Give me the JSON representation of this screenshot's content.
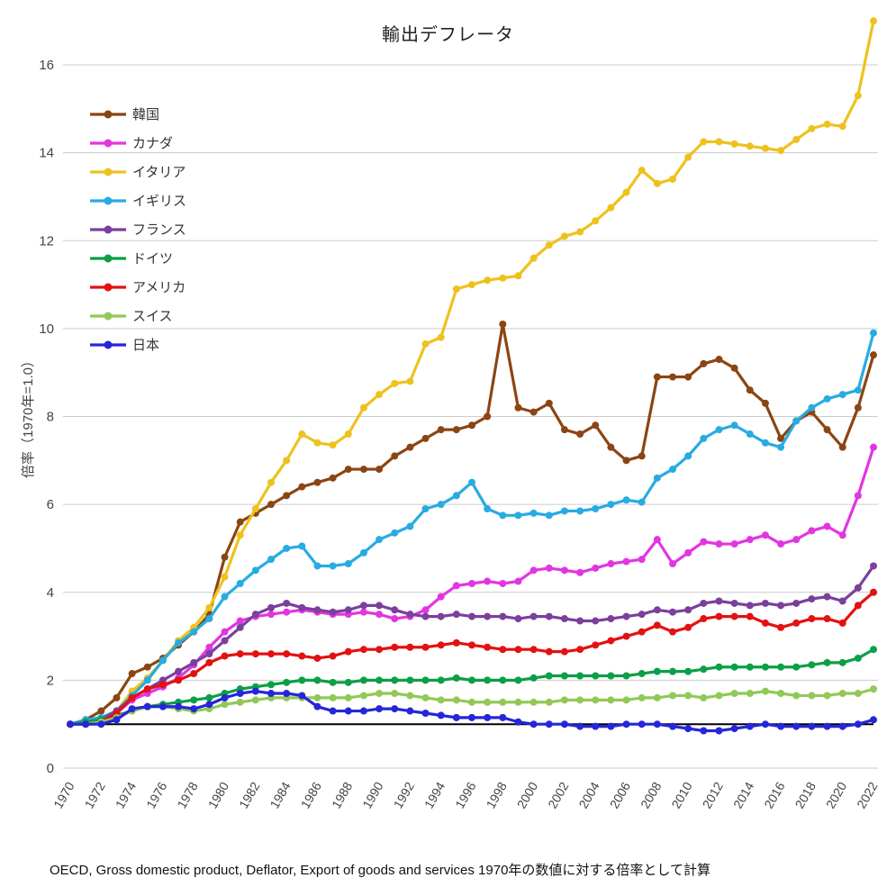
{
  "chart_data": {
    "type": "line",
    "title": "輸出デフレータ",
    "ylabel": "倍率（1970年=1.0）",
    "xlabel": "",
    "ylim": [
      0,
      17
    ],
    "yticks": [
      0,
      2,
      4,
      6,
      8,
      10,
      12,
      14,
      16
    ],
    "x_tick_interval": 2,
    "grid": "horizontal",
    "legend_position": "upper-left",
    "baseline_value": 1.0,
    "baseline_color": "#000000",
    "x": [
      1970,
      1971,
      1972,
      1973,
      1974,
      1975,
      1976,
      1977,
      1978,
      1979,
      1980,
      1981,
      1982,
      1983,
      1984,
      1985,
      1986,
      1987,
      1988,
      1989,
      1990,
      1991,
      1992,
      1993,
      1994,
      1995,
      1996,
      1997,
      1998,
      1999,
      2000,
      2001,
      2002,
      2003,
      2004,
      2005,
      2006,
      2007,
      2008,
      2009,
      2010,
      2011,
      2012,
      2013,
      2014,
      2015,
      2016,
      2017,
      2018,
      2019,
      2020,
      2021,
      2022
    ],
    "series": [
      {
        "name": "韓国",
        "color": "#8b4513",
        "values": [
          1.0,
          1.1,
          1.3,
          1.6,
          2.15,
          2.3,
          2.5,
          2.8,
          3.1,
          3.5,
          4.8,
          5.6,
          5.8,
          6.0,
          6.2,
          6.4,
          6.5,
          6.6,
          6.8,
          6.8,
          6.8,
          7.1,
          7.3,
          7.5,
          7.7,
          7.7,
          7.8,
          8.0,
          10.1,
          8.2,
          8.1,
          8.3,
          7.7,
          7.6,
          7.8,
          7.3,
          7.0,
          7.1,
          8.9,
          8.9,
          8.9,
          9.2,
          9.3,
          9.1,
          8.6,
          8.3,
          7.5,
          7.9,
          8.1,
          7.7,
          7.3,
          8.2,
          9.4
        ]
      },
      {
        "name": "カナダ",
        "color": "#e235e2",
        "values": [
          1.0,
          1.0,
          1.05,
          1.25,
          1.55,
          1.7,
          1.85,
          2.05,
          2.35,
          2.75,
          3.1,
          3.35,
          3.45,
          3.5,
          3.55,
          3.6,
          3.55,
          3.5,
          3.5,
          3.55,
          3.5,
          3.4,
          3.45,
          3.6,
          3.9,
          4.15,
          4.2,
          4.25,
          4.2,
          4.25,
          4.5,
          4.55,
          4.5,
          4.45,
          4.55,
          4.65,
          4.7,
          4.75,
          5.2,
          4.65,
          4.9,
          5.15,
          5.1,
          5.1,
          5.2,
          5.3,
          5.1,
          5.2,
          5.4,
          5.5,
          5.3,
          6.2,
          7.3
        ]
      },
      {
        "name": "イタリア",
        "color": "#eec21e",
        "values": [
          1.0,
          1.05,
          1.1,
          1.3,
          1.75,
          2.05,
          2.45,
          2.9,
          3.2,
          3.65,
          4.35,
          5.3,
          5.9,
          6.5,
          7.0,
          7.6,
          7.4,
          7.35,
          7.6,
          8.2,
          8.5,
          8.75,
          8.8,
          9.65,
          9.8,
          10.9,
          11.0,
          11.1,
          11.15,
          11.2,
          11.6,
          11.9,
          12.1,
          12.2,
          12.45,
          12.75,
          13.1,
          13.6,
          13.3,
          13.4,
          13.9,
          14.25,
          14.25,
          14.2,
          14.15,
          14.1,
          14.05,
          14.3,
          14.55,
          14.65,
          14.6,
          15.3,
          17.0
        ]
      },
      {
        "name": "イギリス",
        "color": "#29abe2",
        "values": [
          1.0,
          1.1,
          1.15,
          1.3,
          1.65,
          2.0,
          2.45,
          2.85,
          3.1,
          3.4,
          3.9,
          4.2,
          4.5,
          4.75,
          5.0,
          5.05,
          4.6,
          4.6,
          4.65,
          4.9,
          5.2,
          5.35,
          5.5,
          5.9,
          6.0,
          6.2,
          6.5,
          5.9,
          5.75,
          5.75,
          5.8,
          5.75,
          5.85,
          5.85,
          5.9,
          6.0,
          6.1,
          6.05,
          6.6,
          6.8,
          7.1,
          7.5,
          7.7,
          7.8,
          7.6,
          7.4,
          7.3,
          7.9,
          8.2,
          8.4,
          8.5,
          8.6,
          9.9
        ]
      },
      {
        "name": "フランス",
        "color": "#7b3f9d",
        "values": [
          1.0,
          1.05,
          1.1,
          1.3,
          1.6,
          1.8,
          2.0,
          2.2,
          2.4,
          2.6,
          2.9,
          3.2,
          3.5,
          3.65,
          3.75,
          3.65,
          3.6,
          3.55,
          3.6,
          3.7,
          3.7,
          3.6,
          3.5,
          3.45,
          3.45,
          3.5,
          3.45,
          3.45,
          3.45,
          3.4,
          3.45,
          3.45,
          3.4,
          3.35,
          3.35,
          3.4,
          3.45,
          3.5,
          3.6,
          3.55,
          3.6,
          3.75,
          3.8,
          3.75,
          3.7,
          3.75,
          3.7,
          3.75,
          3.85,
          3.9,
          3.8,
          4.1,
          4.6
        ]
      },
      {
        "name": "ドイツ",
        "color": "#0b9f47",
        "values": [
          1.0,
          1.05,
          1.1,
          1.2,
          1.3,
          1.4,
          1.45,
          1.5,
          1.55,
          1.6,
          1.7,
          1.8,
          1.85,
          1.9,
          1.95,
          2.0,
          2.0,
          1.95,
          1.95,
          2.0,
          2.0,
          2.0,
          2.0,
          2.0,
          2.0,
          2.05,
          2.0,
          2.0,
          2.0,
          2.0,
          2.05,
          2.1,
          2.1,
          2.1,
          2.1,
          2.1,
          2.1,
          2.15,
          2.2,
          2.2,
          2.2,
          2.25,
          2.3,
          2.3,
          2.3,
          2.3,
          2.3,
          2.3,
          2.35,
          2.4,
          2.4,
          2.5,
          2.7
        ]
      },
      {
        "name": "アメリカ",
        "color": "#e31111",
        "values": [
          1.0,
          1.0,
          1.05,
          1.25,
          1.6,
          1.8,
          1.9,
          2.0,
          2.15,
          2.4,
          2.55,
          2.6,
          2.6,
          2.6,
          2.6,
          2.55,
          2.5,
          2.55,
          2.65,
          2.7,
          2.7,
          2.75,
          2.75,
          2.75,
          2.8,
          2.85,
          2.8,
          2.75,
          2.7,
          2.7,
          2.7,
          2.65,
          2.65,
          2.7,
          2.8,
          2.9,
          3.0,
          3.1,
          3.25,
          3.1,
          3.2,
          3.4,
          3.45,
          3.45,
          3.45,
          3.3,
          3.2,
          3.3,
          3.4,
          3.4,
          3.3,
          3.7,
          4.0
        ]
      },
      {
        "name": "スイス",
        "color": "#92c857",
        "values": [
          1.0,
          1.0,
          1.05,
          1.15,
          1.3,
          1.4,
          1.4,
          1.35,
          1.3,
          1.35,
          1.45,
          1.5,
          1.55,
          1.6,
          1.6,
          1.6,
          1.6,
          1.6,
          1.6,
          1.65,
          1.7,
          1.7,
          1.65,
          1.6,
          1.55,
          1.55,
          1.5,
          1.5,
          1.5,
          1.5,
          1.5,
          1.5,
          1.55,
          1.55,
          1.55,
          1.55,
          1.55,
          1.6,
          1.6,
          1.65,
          1.65,
          1.6,
          1.65,
          1.7,
          1.7,
          1.75,
          1.7,
          1.65,
          1.65,
          1.65,
          1.7,
          1.7,
          1.8
        ]
      },
      {
        "name": "日本",
        "color": "#2626d9",
        "values": [
          1.0,
          1.0,
          1.0,
          1.1,
          1.35,
          1.4,
          1.4,
          1.4,
          1.35,
          1.45,
          1.6,
          1.7,
          1.75,
          1.7,
          1.7,
          1.65,
          1.4,
          1.3,
          1.3,
          1.3,
          1.35,
          1.35,
          1.3,
          1.25,
          1.2,
          1.15,
          1.15,
          1.15,
          1.15,
          1.05,
          1.0,
          1.0,
          1.0,
          0.95,
          0.95,
          0.95,
          1.0,
          1.0,
          1.0,
          0.95,
          0.9,
          0.85,
          0.85,
          0.9,
          0.95,
          1.0,
          0.95,
          0.95,
          0.95,
          0.95,
          0.95,
          1.0,
          1.1
        ]
      }
    ]
  },
  "footer": {
    "source": "OECD, Gross domestic product, Deflator, Export of goods and services 1970年の数値に対する倍率として計算"
  }
}
